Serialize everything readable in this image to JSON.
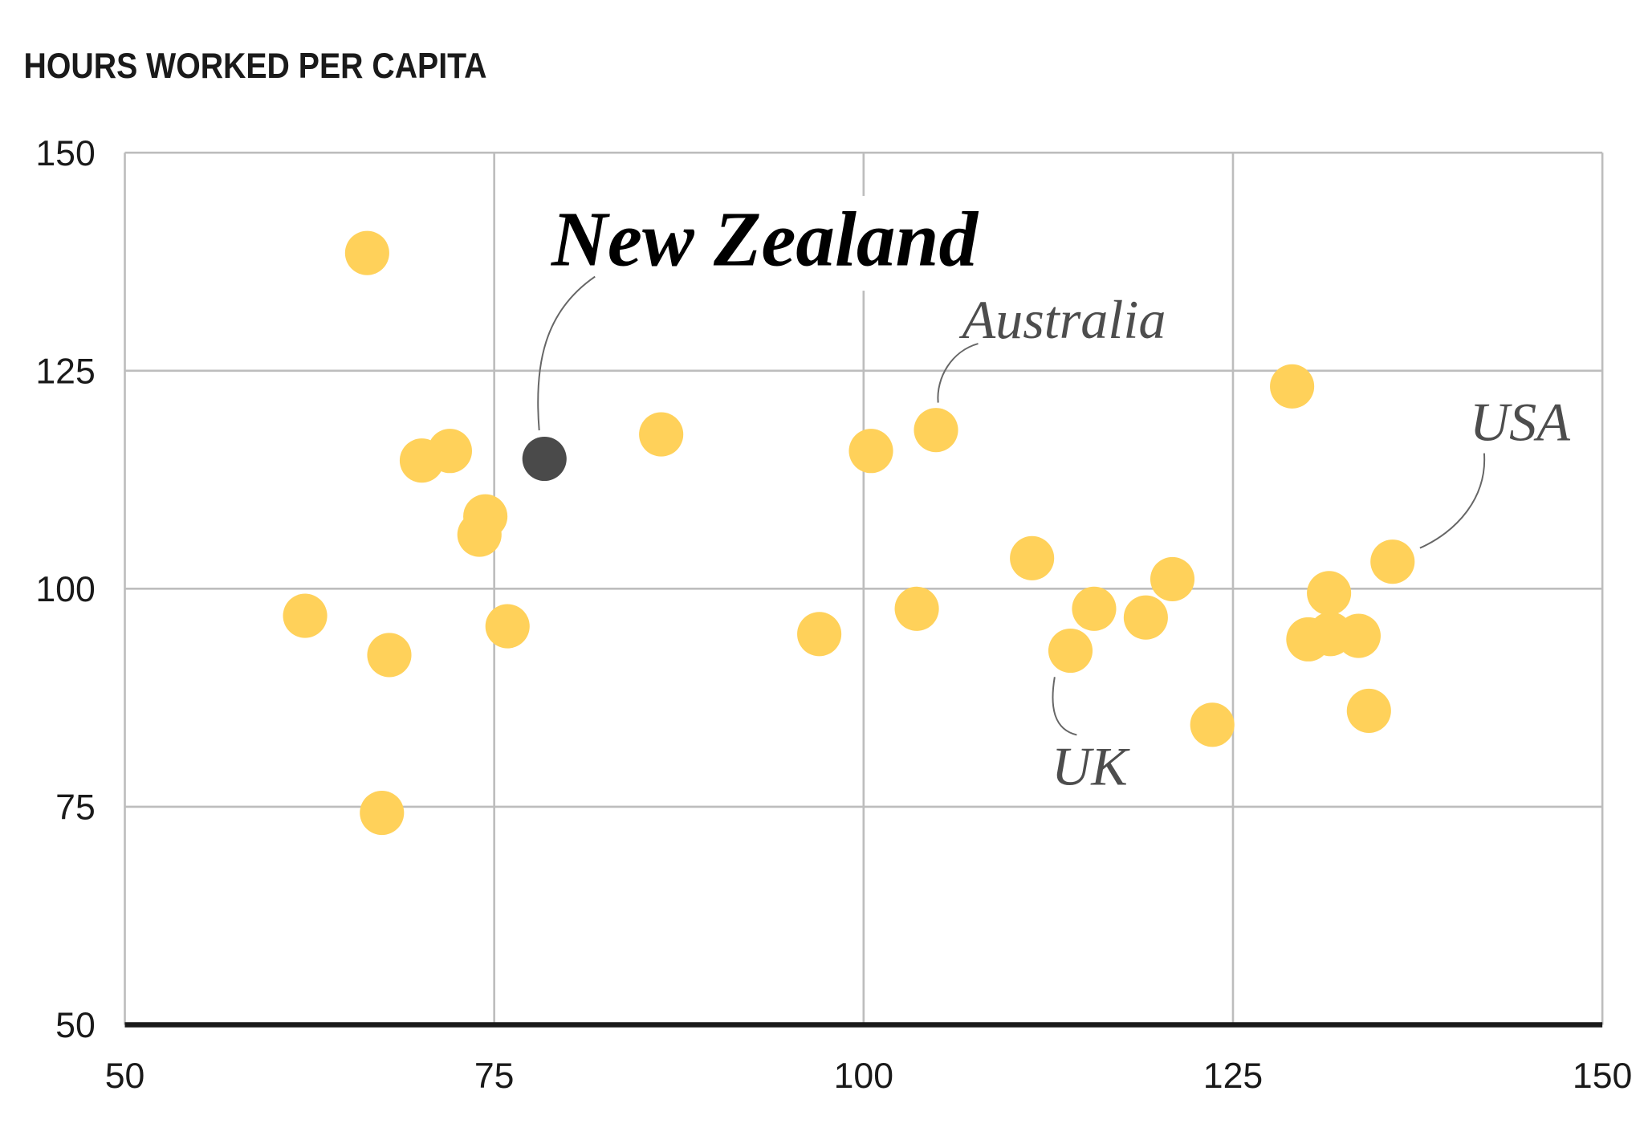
{
  "chart_data": {
    "type": "scatter",
    "title": "HOURS WORKED PER CAPITA",
    "xlabel": "",
    "ylabel": "",
    "xlim": [
      50,
      150
    ],
    "ylim": [
      50,
      150
    ],
    "xticks": [
      "50",
      "75",
      "100",
      "125",
      "150"
    ],
    "yticks": [
      "50",
      "75",
      "100",
      "125",
      "150"
    ],
    "grid": true,
    "colors": {
      "default": "#FFD15A",
      "highlight": "#4A4A4A",
      "grid": "#BDBDBD",
      "axis": "#1A1A1A"
    },
    "points": [
      {
        "x": 66.4,
        "y": 138.5
      },
      {
        "x": 70.1,
        "y": 114.7
      },
      {
        "x": 72.0,
        "y": 115.8
      },
      {
        "x": 74.4,
        "y": 108.3
      },
      {
        "x": 74.0,
        "y": 106.2
      },
      {
        "x": 62.2,
        "y": 96.9
      },
      {
        "x": 67.9,
        "y": 92.4
      },
      {
        "x": 75.9,
        "y": 95.7
      },
      {
        "x": 67.4,
        "y": 74.3
      },
      {
        "x": 78.4,
        "y": 114.9,
        "label": "New Zealand",
        "highlight": true
      },
      {
        "x": 86.3,
        "y": 117.7
      },
      {
        "x": 100.5,
        "y": 115.8
      },
      {
        "x": 104.9,
        "y": 118.2,
        "label": "Australia"
      },
      {
        "x": 97.0,
        "y": 94.8
      },
      {
        "x": 103.6,
        "y": 97.7
      },
      {
        "x": 111.4,
        "y": 103.5
      },
      {
        "x": 114.0,
        "y": 92.9,
        "label": "UK"
      },
      {
        "x": 115.6,
        "y": 97.7
      },
      {
        "x": 119.1,
        "y": 96.7
      },
      {
        "x": 120.9,
        "y": 101.1
      },
      {
        "x": 123.6,
        "y": 84.4
      },
      {
        "x": 129.0,
        "y": 123.2
      },
      {
        "x": 131.5,
        "y": 99.5
      },
      {
        "x": 130.1,
        "y": 94.2
      },
      {
        "x": 131.6,
        "y": 94.8
      },
      {
        "x": 133.5,
        "y": 94.6
      },
      {
        "x": 134.2,
        "y": 86.0
      },
      {
        "x": 135.8,
        "y": 103.1,
        "label": "USA"
      }
    ]
  }
}
